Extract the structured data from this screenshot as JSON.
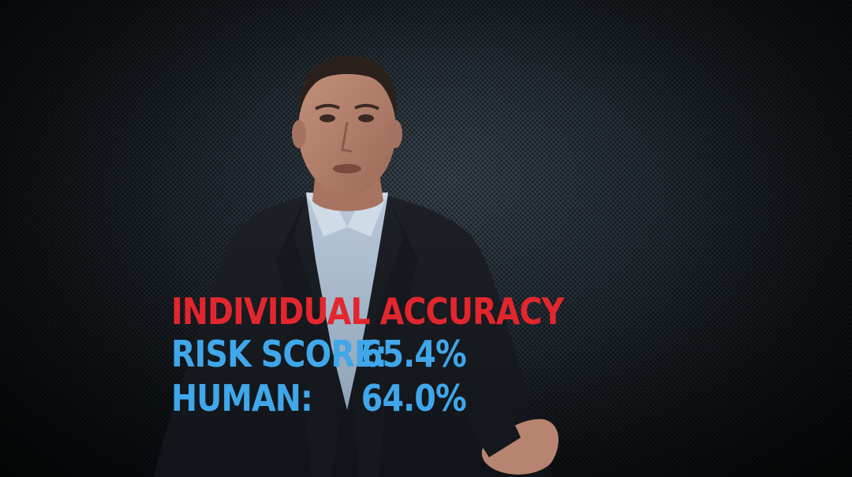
{
  "scene": {
    "background_color": "#27313a",
    "subject": "presenter-in-dark-suit"
  },
  "overlay": {
    "title": "INDIVIDUAL ACCURACY",
    "title_color": "#e3262e",
    "text_color": "#3fa7ea",
    "rows": [
      {
        "label": "RISK SCORE:",
        "value": "65.4%"
      },
      {
        "label": "HUMAN:",
        "value": "64.0%"
      }
    ]
  }
}
